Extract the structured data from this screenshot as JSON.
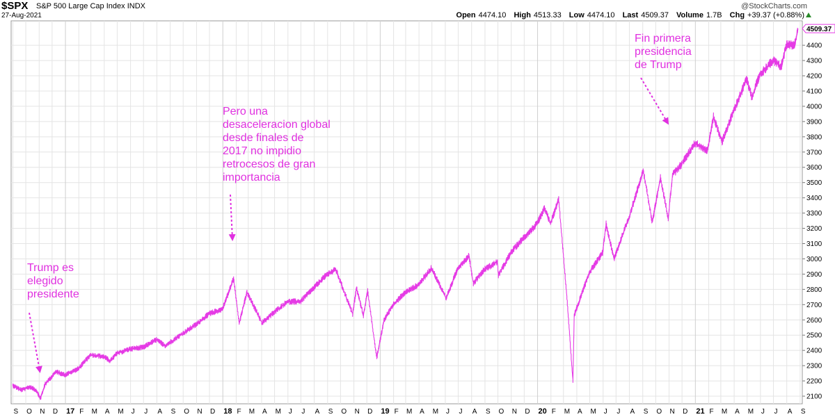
{
  "header": {
    "symbol": "$SPX",
    "name": "S&P 500 Large Cap Index",
    "exchange": "INDX",
    "date": "27-Aug-2021",
    "brand": "@StockCharts.com",
    "open_label": "Open",
    "open": "4474.10",
    "high_label": "High",
    "high": "4513.33",
    "low_label": "Low",
    "low": "4474.10",
    "last_label": "Last",
    "last": "4509.37",
    "volume_label": "Volume",
    "volume": "1.7B",
    "chg_label": "Chg",
    "chg": "+39.37 (+0.88%)"
  },
  "colors": {
    "line": "#e53be5",
    "annotation": "#e030e0",
    "grid": "#e4e4e4",
    "up": "#2a8a2a"
  },
  "annotations": [
    {
      "id": "trump-elected",
      "text": "Trump es\nelegido\npresidente"
    },
    {
      "id": "global-slowdown",
      "text": "Pero una\ndesaceleracion global\ndesde finales de\n2017 no impidio\nretrocesos de gran\nimportancia"
    },
    {
      "id": "end-presidency",
      "text": "Fin primera\npresidencia\nde Trump"
    }
  ],
  "chart_data": {
    "type": "line",
    "title": "$SPX S&P 500 Large Cap Index",
    "ylim": [
      2050,
      4560
    ],
    "y_ticks": [
      2100,
      2200,
      2300,
      2400,
      2500,
      2600,
      2700,
      2800,
      2900,
      3000,
      3100,
      3200,
      3300,
      3400,
      3500,
      3600,
      3700,
      3800,
      3900,
      4000,
      4100,
      4200,
      4300,
      4400
    ],
    "x_tick_labels": [
      "S",
      "O",
      "N",
      "D",
      "17",
      "F",
      "M",
      "A",
      "M",
      "J",
      "J",
      "A",
      "S",
      "O",
      "N",
      "D",
      "18",
      "F",
      "M",
      "A",
      "M",
      "J",
      "J",
      "A",
      "S",
      "O",
      "N",
      "D",
      "19",
      "F",
      "M",
      "A",
      "M",
      "J",
      "J",
      "A",
      "S",
      "O",
      "N",
      "D",
      "20",
      "F",
      "M",
      "A",
      "M",
      "J",
      "J",
      "A",
      "S",
      "O",
      "N",
      "D",
      "21",
      "F",
      "M",
      "A",
      "M",
      "J",
      "J",
      "A",
      "S"
    ],
    "last_value_label": "4509.37",
    "grid": true,
    "series": [
      {
        "values": [
          [
            "2016-09-01",
            2170
          ],
          [
            "2016-09-20",
            2140
          ],
          [
            "2016-10-10",
            2160
          ],
          [
            "2016-10-25",
            2140
          ],
          [
            "2016-11-04",
            2085
          ],
          [
            "2016-11-15",
            2180
          ],
          [
            "2016-12-10",
            2260
          ],
          [
            "2016-12-31",
            2240
          ],
          [
            "2017-01-31",
            2280
          ],
          [
            "2017-02-28",
            2370
          ],
          [
            "2017-03-31",
            2360
          ],
          [
            "2017-04-15",
            2330
          ],
          [
            "2017-04-30",
            2380
          ],
          [
            "2017-05-31",
            2410
          ],
          [
            "2017-06-30",
            2420
          ],
          [
            "2017-07-31",
            2470
          ],
          [
            "2017-08-20",
            2430
          ],
          [
            "2017-09-30",
            2510
          ],
          [
            "2017-10-31",
            2570
          ],
          [
            "2017-11-30",
            2640
          ],
          [
            "2017-12-31",
            2670
          ],
          [
            "2018-01-26",
            2870
          ],
          [
            "2018-02-08",
            2580
          ],
          [
            "2018-02-26",
            2780
          ],
          [
            "2018-04-02",
            2580
          ],
          [
            "2018-04-30",
            2650
          ],
          [
            "2018-05-31",
            2720
          ],
          [
            "2018-06-30",
            2720
          ],
          [
            "2018-07-31",
            2810
          ],
          [
            "2018-08-31",
            2900
          ],
          [
            "2018-09-20",
            2930
          ],
          [
            "2018-10-10",
            2780
          ],
          [
            "2018-10-29",
            2640
          ],
          [
            "2018-11-07",
            2810
          ],
          [
            "2018-11-23",
            2630
          ],
          [
            "2018-12-03",
            2790
          ],
          [
            "2018-12-24",
            2350
          ],
          [
            "2019-01-10",
            2600
          ],
          [
            "2019-01-31",
            2700
          ],
          [
            "2019-02-28",
            2780
          ],
          [
            "2019-03-31",
            2830
          ],
          [
            "2019-04-30",
            2940
          ],
          [
            "2019-06-03",
            2740
          ],
          [
            "2019-06-30",
            2940
          ],
          [
            "2019-07-26",
            3020
          ],
          [
            "2019-08-05",
            2840
          ],
          [
            "2019-08-30",
            2930
          ],
          [
            "2019-09-30",
            2980
          ],
          [
            "2019-10-02",
            2890
          ],
          [
            "2019-10-31",
            3040
          ],
          [
            "2019-11-30",
            3140
          ],
          [
            "2019-12-31",
            3230
          ],
          [
            "2020-01-17",
            3330
          ],
          [
            "2020-01-31",
            3230
          ],
          [
            "2020-02-19",
            3390
          ],
          [
            "2020-03-09",
            2750
          ],
          [
            "2020-03-23",
            2200
          ],
          [
            "2020-03-26",
            2630
          ],
          [
            "2020-04-30",
            2910
          ],
          [
            "2020-05-31",
            3040
          ],
          [
            "2020-06-08",
            3230
          ],
          [
            "2020-06-26",
            3000
          ],
          [
            "2020-07-31",
            3270
          ],
          [
            "2020-09-02",
            3580
          ],
          [
            "2020-09-23",
            3240
          ],
          [
            "2020-10-12",
            3530
          ],
          [
            "2020-10-30",
            3270
          ],
          [
            "2020-11-09",
            3550
          ],
          [
            "2020-11-30",
            3620
          ],
          [
            "2020-12-31",
            3760
          ],
          [
            "2021-01-29",
            3710
          ],
          [
            "2021-02-12",
            3930
          ],
          [
            "2021-03-04",
            3770
          ],
          [
            "2021-03-31",
            3970
          ],
          [
            "2021-04-30",
            4180
          ],
          [
            "2021-05-12",
            4060
          ],
          [
            "2021-05-31",
            4210
          ],
          [
            "2021-06-30",
            4300
          ],
          [
            "2021-07-19",
            4260
          ],
          [
            "2021-07-31",
            4400
          ],
          [
            "2021-08-19",
            4400
          ],
          [
            "2021-08-27",
            4509.37
          ]
        ]
      }
    ]
  }
}
